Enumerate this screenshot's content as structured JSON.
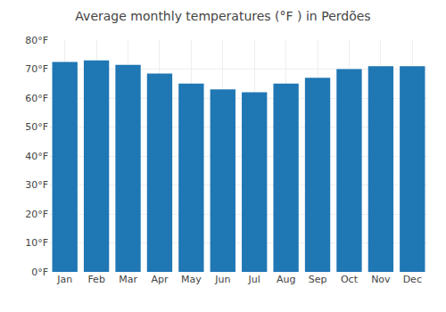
{
  "chart_data": {
    "type": "bar",
    "title": "Average monthly temperatures (°F ) in Perdões",
    "categories": [
      "Jan",
      "Feb",
      "Mar",
      "Apr",
      "May",
      "Jun",
      "Jul",
      "Aug",
      "Sep",
      "Oct",
      "Nov",
      "Dec"
    ],
    "values": [
      72.5,
      73.0,
      71.5,
      68.5,
      65.0,
      63.0,
      62.0,
      65.0,
      67.0,
      70.0,
      71.0,
      71.0
    ],
    "ylim": [
      0,
      80
    ],
    "yticks": [
      {
        "value": 0,
        "label": "0°F"
      },
      {
        "value": 10,
        "label": "10°F"
      },
      {
        "value": 20,
        "label": "20°F"
      },
      {
        "value": 30,
        "label": "30°F"
      },
      {
        "value": 40,
        "label": "40°F"
      },
      {
        "value": 50,
        "label": "50°F"
      },
      {
        "value": 60,
        "label": "60°F"
      },
      {
        "value": 70,
        "label": "70°F"
      },
      {
        "value": 80,
        "label": "80°F"
      }
    ],
    "grid": true
  }
}
